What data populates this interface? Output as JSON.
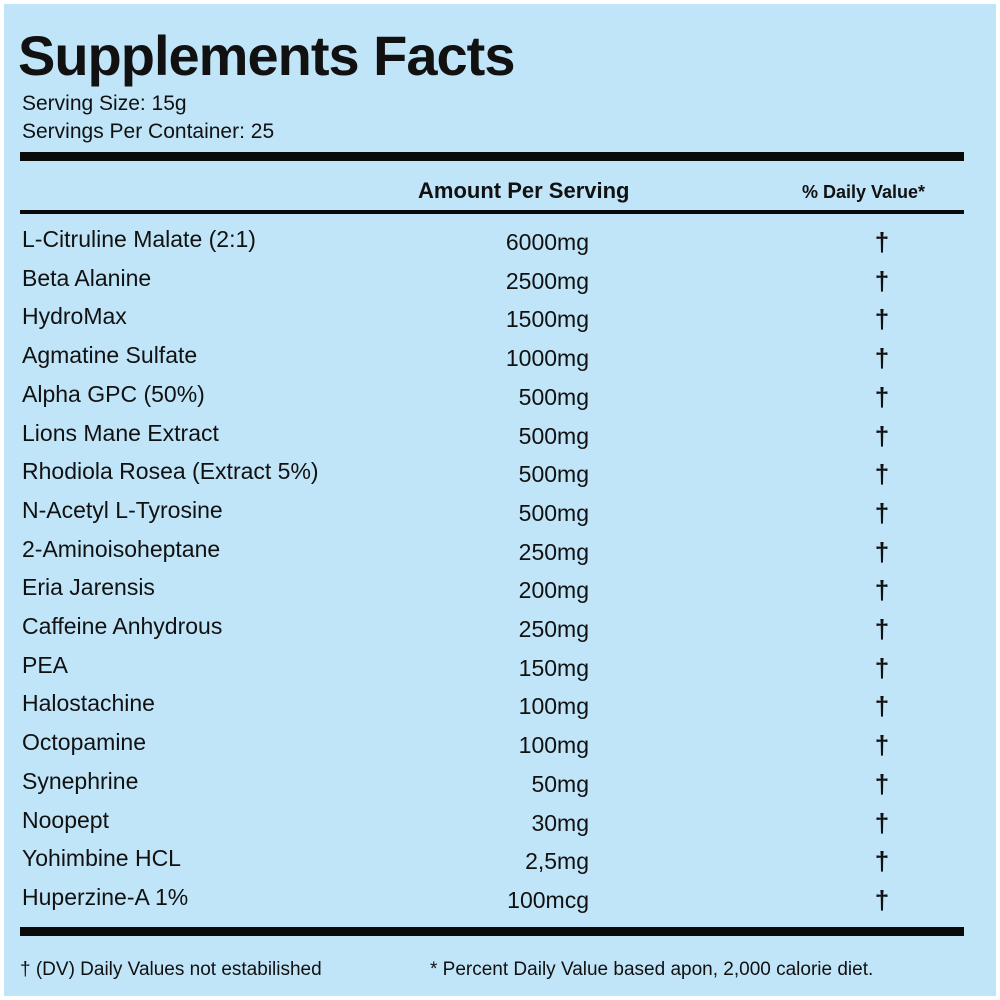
{
  "title": "Supplements Facts",
  "serving": {
    "size": "Serving Size: 15g",
    "per_container": "Servings Per Container: 25"
  },
  "table": {
    "header": [
      "Amount Per Serving",
      "% Daily Value*"
    ],
    "rows": [
      [
        "L-Citruline Malate (2:1)",
        "6000mg",
        "†"
      ],
      [
        "Beta Alanine",
        "2500mg",
        "†"
      ],
      [
        "HydroMax",
        "1500mg",
        "†"
      ],
      [
        "Agmatine Sulfate",
        "1000mg",
        "†"
      ],
      [
        "Alpha GPC (50%)",
        "500mg",
        "†"
      ],
      [
        "Lions Mane Extract",
        "500mg",
        "†"
      ],
      [
        "Rhodiola Rosea (Extract 5%)",
        "500mg",
        "†"
      ],
      [
        "N-Acetyl L-Tyrosine",
        "500mg",
        "†"
      ],
      [
        "2-Aminoisoheptane",
        "250mg",
        "†"
      ],
      [
        "Eria Jarensis",
        "200mg",
        "†"
      ],
      [
        "Caffeine Anhydrous",
        "250mg",
        "†"
      ],
      [
        "PEA",
        "150mg",
        "†"
      ],
      [
        "Halostachine",
        "100mg",
        "†"
      ],
      [
        "Octopamine",
        "100mg",
        "†"
      ],
      [
        "Synephrine",
        "50mg",
        "†"
      ],
      [
        "Noopept",
        "30mg",
        "†"
      ],
      [
        "Yohimbine HCL",
        "2,5mg",
        "†"
      ],
      [
        "Huperzine-A 1%",
        "100mcg",
        "†"
      ]
    ]
  },
  "footer": {
    "left": "† (DV) Daily Values not estabilished",
    "right": "* Percent Daily Value based apon, 2,000 calorie diet."
  }
}
